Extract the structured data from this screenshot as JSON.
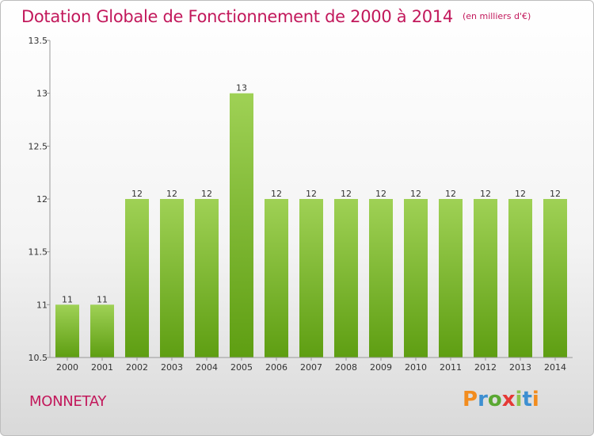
{
  "title": "Dotation Globale de Fonctionnement de 2000 à 2014",
  "unit_note": "(en milliers d'€)",
  "commune": "MONNETAY",
  "logo": {
    "letters": [
      "P",
      "r",
      "o",
      "x",
      "i",
      "t",
      "i"
    ],
    "colors": [
      "#f28c1e",
      "#3d8fd1",
      "#5aa832",
      "#e53935",
      "#8bc34a",
      "#3d8fd1",
      "#f28c1e"
    ]
  },
  "chart_data": {
    "type": "bar",
    "categories": [
      "2000",
      "2001",
      "2002",
      "2003",
      "2004",
      "2005",
      "2006",
      "2007",
      "2008",
      "2009",
      "2010",
      "2011",
      "2012",
      "2013",
      "2014"
    ],
    "values": [
      11,
      11,
      12,
      12,
      12,
      13,
      12,
      12,
      12,
      12,
      12,
      12,
      12,
      12,
      12
    ],
    "data_labels": [
      "11",
      "11",
      "12",
      "12",
      "12",
      "13",
      "12",
      "12",
      "12",
      "12",
      "12",
      "12",
      "12",
      "12",
      "12"
    ],
    "ylim": [
      10.5,
      13.5
    ],
    "yticks": [
      "10.5",
      "11",
      "11.5",
      "12",
      "12.5",
      "13",
      "13.5"
    ],
    "ytick_values": [
      10.5,
      11,
      11.5,
      12,
      12.5,
      13,
      13.5
    ],
    "bar_color_top": "#9fd155",
    "bar_color_bottom": "#5e9e12",
    "grid": false
  }
}
